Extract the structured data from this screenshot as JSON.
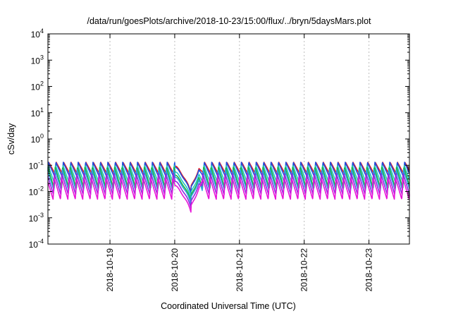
{
  "chart_data": {
    "type": "line",
    "title": "/data/run/goesPlots/archive/2018-10-23/15:00/flux/../bryn/5daysMars.plot",
    "xlabel": "Coordinated Universal Time (UTC)",
    "ylabel": "cSv/day",
    "y_scale": "log",
    "ylim": [
      0.0001,
      10000
    ],
    "xlim": [
      "2018-10-18T01:00",
      "2018-10-23T15:00"
    ],
    "y_ticks": [
      {
        "base": "10",
        "exp": "-4"
      },
      {
        "base": "10",
        "exp": "-3"
      },
      {
        "base": "10",
        "exp": "-2"
      },
      {
        "base": "10",
        "exp": "-1"
      },
      {
        "base": "10",
        "exp": "0"
      },
      {
        "base": "10",
        "exp": "1"
      },
      {
        "base": "10",
        "exp": "2"
      },
      {
        "base": "10",
        "exp": "3"
      },
      {
        "base": "10",
        "exp": "4"
      }
    ],
    "x_ticks": [
      "2018-10-19",
      "2018-10-20",
      "2018-10-21",
      "2018-10-22",
      "2018-10-23"
    ],
    "grid": true,
    "legend": "none",
    "series": [
      {
        "color": "#e8191f",
        "peak": 0.13,
        "trough": 0.045,
        "period_hours": 2.75
      },
      {
        "color": "#1f4fe0",
        "peak": 0.13,
        "trough": 0.035,
        "period_hours": 2.75
      },
      {
        "color": "#1cc5c5",
        "peak": 0.1,
        "trough": 0.02,
        "period_hours": 2.75
      },
      {
        "color": "#22b33a",
        "peak": 0.085,
        "trough": 0.013,
        "period_hours": 2.75
      },
      {
        "color": "#2aa1de",
        "peak": 0.07,
        "trough": 0.011,
        "period_hours": 2.75
      },
      {
        "color": "#8a2be2",
        "peak": 0.05,
        "trough": 0.0075,
        "period_hours": 2.75
      },
      {
        "color": "#e815d8",
        "peak": 0.035,
        "trough": 0.005,
        "period_hours": 2.75
      }
    ],
    "event": {
      "start": "2018-10-20T00:00",
      "dip_minimum_time": "2018-10-20T06:00",
      "end": "2018-10-20T09:00",
      "dip_minimum_factor": 0.1
    }
  }
}
